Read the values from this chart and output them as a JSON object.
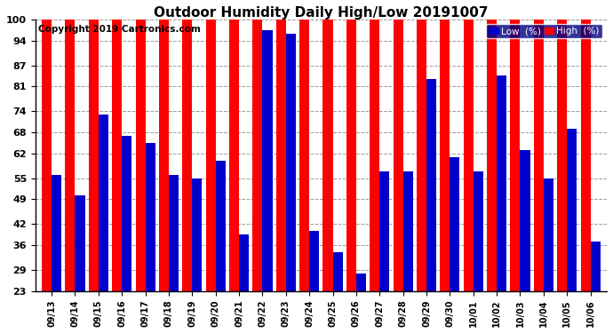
{
  "title": "Outdoor Humidity Daily High/Low 20191007",
  "copyright": "Copyright 2019 Cartronics.com",
  "legend_low": "Low  (%)",
  "legend_high": "High  (%)",
  "categories": [
    "09/13",
    "09/14",
    "09/15",
    "09/16",
    "09/17",
    "09/18",
    "09/19",
    "09/20",
    "09/21",
    "09/22",
    "09/23",
    "09/24",
    "09/25",
    "09/26",
    "09/27",
    "09/28",
    "09/29",
    "09/30",
    "10/01",
    "10/02",
    "10/03",
    "10/04",
    "10/05",
    "10/06"
  ],
  "high_values": [
    100,
    100,
    100,
    100,
    100,
    100,
    100,
    100,
    100,
    100,
    100,
    100,
    100,
    100,
    100,
    100,
    100,
    100,
    100,
    100,
    100,
    100,
    100,
    100
  ],
  "low_values": [
    56,
    50,
    73,
    67,
    65,
    56,
    55,
    60,
    39,
    97,
    96,
    40,
    34,
    28,
    57,
    57,
    83,
    61,
    57,
    84,
    63,
    55,
    69,
    37
  ],
  "bar_color_high": "#ff0000",
  "bar_color_low": "#0000cc",
  "background_color": "#ffffff",
  "grid_color": "#999999",
  "ylim_min": 23,
  "ylim_max": 100,
  "yticks": [
    23,
    29,
    36,
    42,
    49,
    55,
    62,
    68,
    74,
    81,
    87,
    94,
    100
  ],
  "title_fontsize": 11,
  "copyright_fontsize": 7.5,
  "bar_width": 0.42
}
